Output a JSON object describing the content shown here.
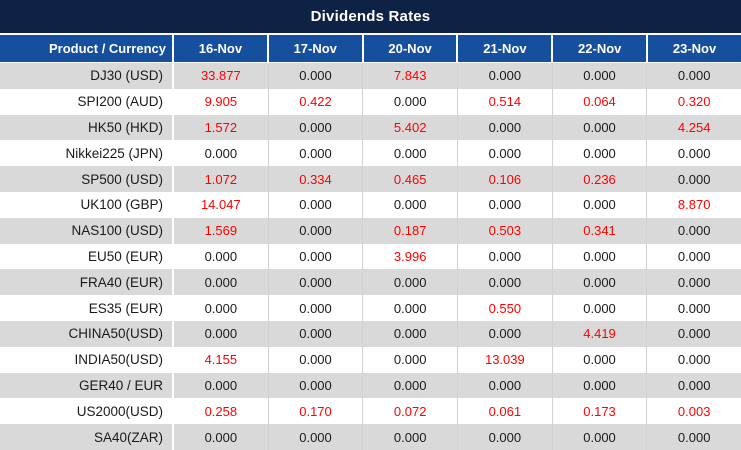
{
  "title": "Dividends Rates",
  "colors": {
    "title_bg": "#0d2244",
    "header_bg": "#164f9e",
    "header_text": "#ffffff",
    "row_bg": "#ffffff",
    "row_alt_bg": "#d9d9d9",
    "grid_line": "#d2d2d2",
    "product_text": "#1a1a1a",
    "value_zero": "#1a1a1a",
    "value_nonzero": "#ff0000"
  },
  "table": {
    "product_column_header": "Product / Currency",
    "date_columns": [
      "16-Nov",
      "17-Nov",
      "20-Nov",
      "21-Nov",
      "22-Nov",
      "23-Nov"
    ],
    "rows": [
      {
        "product": "DJ30 (USD)",
        "values": [
          "33.877",
          "0.000",
          "7.843",
          "0.000",
          "0.000",
          "0.000"
        ]
      },
      {
        "product": "SPI200 (AUD)",
        "values": [
          "9.905",
          "0.422",
          "0.000",
          "0.514",
          "0.064",
          "0.320"
        ]
      },
      {
        "product": "HK50 (HKD)",
        "values": [
          "1.572",
          "0.000",
          "5.402",
          "0.000",
          "0.000",
          "4.254"
        ]
      },
      {
        "product": "Nikkei225 (JPN)",
        "values": [
          "0.000",
          "0.000",
          "0.000",
          "0.000",
          "0.000",
          "0.000"
        ]
      },
      {
        "product": "SP500 (USD)",
        "values": [
          "1.072",
          "0.334",
          "0.465",
          "0.106",
          "0.236",
          "0.000"
        ]
      },
      {
        "product": "UK100 (GBP)",
        "values": [
          "14.047",
          "0.000",
          "0.000",
          "0.000",
          "0.000",
          "8.870"
        ]
      },
      {
        "product": "NAS100 (USD)",
        "values": [
          "1.569",
          "0.000",
          "0.187",
          "0.503",
          "0.341",
          "0.000"
        ]
      },
      {
        "product": "EU50 (EUR)",
        "values": [
          "0.000",
          "0.000",
          "3.996",
          "0.000",
          "0.000",
          "0.000"
        ]
      },
      {
        "product": "FRA40 (EUR)",
        "values": [
          "0.000",
          "0.000",
          "0.000",
          "0.000",
          "0.000",
          "0.000"
        ]
      },
      {
        "product": "ES35 (EUR)",
        "values": [
          "0.000",
          "0.000",
          "0.000",
          "0.550",
          "0.000",
          "0.000"
        ]
      },
      {
        "product": "CHINA50(USD)",
        "values": [
          "0.000",
          "0.000",
          "0.000",
          "0.000",
          "4.419",
          "0.000"
        ]
      },
      {
        "product": "INDIA50(USD)",
        "values": [
          "4.155",
          "0.000",
          "0.000",
          "13.039",
          "0.000",
          "0.000"
        ]
      },
      {
        "product": "GER40 / EUR",
        "values": [
          "0.000",
          "0.000",
          "0.000",
          "0.000",
          "0.000",
          "0.000"
        ]
      },
      {
        "product": "US2000(USD)",
        "values": [
          "0.258",
          "0.170",
          "0.072",
          "0.061",
          "0.173",
          "0.003"
        ]
      },
      {
        "product": "SA40(ZAR)",
        "values": [
          "0.000",
          "0.000",
          "0.000",
          "0.000",
          "0.000",
          "0.000"
        ]
      }
    ]
  }
}
